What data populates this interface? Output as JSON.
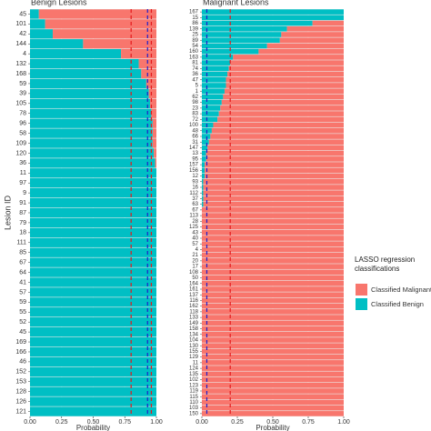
{
  "chart_data": [
    {
      "type": "bar",
      "orientation": "horizontal",
      "title": "Benign Lesions",
      "x_label": "Probability",
      "y_label": "Lesion ID",
      "categories": [
        "45",
        "101",
        "42",
        "144",
        "4",
        "132",
        "168",
        "59",
        "39",
        "105",
        "78",
        "96",
        "58",
        "109",
        "120",
        "36",
        "11",
        "97",
        "9",
        "91",
        "87",
        "79",
        "18",
        "111",
        "85",
        "67",
        "64",
        "41",
        "57",
        "59",
        "55",
        "52",
        "45",
        "169",
        "166",
        "46",
        "152",
        "153",
        "128",
        "126",
        "121"
      ],
      "series": [
        {
          "color": "#00bfc4",
          "values": [
            0.07,
            0.12,
            0.18,
            0.42,
            0.72,
            0.86,
            0.88,
            0.92,
            0.94,
            0.95,
            0.96,
            0.97,
            0.97,
            0.97,
            0.98,
            0.99,
            1,
            1,
            1,
            1,
            1,
            1,
            1,
            1,
            1,
            1,
            1,
            1,
            1,
            1,
            1,
            1,
            1,
            1,
            1,
            1,
            1,
            1,
            1,
            1,
            1
          ]
        },
        {
          "color": "#f8766d",
          "values": [
            0.93,
            0.88,
            0.82,
            0.58,
            0.28,
            0.14,
            0.12,
            0.08,
            0.06,
            0.05,
            0.04,
            0.03,
            0.03,
            0.03,
            0.02,
            0.01,
            0,
            0,
            0,
            0,
            0,
            0,
            0,
            0,
            0,
            0,
            0,
            0,
            0,
            0,
            0,
            0,
            0,
            0,
            0,
            0,
            0,
            0,
            0,
            0,
            0
          ]
        }
      ],
      "xlim": [
        0,
        1
      ],
      "xticks": [
        {
          "value": 0,
          "label": "0.00"
        },
        {
          "value": 0.25,
          "label": "0.25"
        },
        {
          "value": 0.5,
          "label": "0.50"
        },
        {
          "value": 0.75,
          "label": "0.75"
        },
        {
          "value": 1,
          "label": "1.00"
        }
      ],
      "reference_lines": [
        {
          "value": 0.8,
          "color": "#e41a1c"
        },
        {
          "value": 0.93,
          "color": "#1f1fcc"
        },
        {
          "value": 0.96,
          "color": "#e41a1c"
        }
      ]
    },
    {
      "type": "bar",
      "orientation": "horizontal",
      "title": "Malignant Lesions",
      "x_label": "Probability",
      "categories": [
        "167",
        "15",
        "86",
        "139",
        "25",
        "89",
        "54",
        "160",
        "163",
        "81",
        "74",
        "36",
        "47",
        "5",
        "1",
        "62",
        "98",
        "23",
        "83",
        "72",
        "100",
        "48",
        "66",
        "31",
        "147",
        "13",
        "95",
        "157",
        "156",
        "12",
        "93",
        "16",
        "112",
        "37",
        "63",
        "67",
        "113",
        "28",
        "125",
        "43",
        "40",
        "57",
        "4",
        "21",
        "20",
        "17",
        "108",
        "50",
        "164",
        "161",
        "137",
        "116",
        "162",
        "118",
        "133",
        "149",
        "158",
        "134",
        "104",
        "130",
        "155",
        "129",
        "11",
        "124",
        "135",
        "102",
        "123",
        "119",
        "115",
        "110",
        "103",
        "150"
      ],
      "series": [
        {
          "name": "Classified Benign",
          "color": "#00bfc4",
          "values": [
            1,
            1,
            0.78,
            0.6,
            0.56,
            0.55,
            0.46,
            0.4,
            0.22,
            0.2,
            0.19,
            0.18,
            0.17,
            0.17,
            0.16,
            0.15,
            0.14,
            0.13,
            0.12,
            0.11,
            0.08,
            0.07,
            0.06,
            0.05,
            0.04,
            0.03,
            0.03,
            0.02,
            0.02,
            0.02,
            0.01,
            0.01,
            0.01,
            0.01,
            0.01,
            0,
            0,
            0,
            0,
            0,
            0,
            0,
            0,
            0,
            0,
            0,
            0,
            0,
            0,
            0,
            0,
            0,
            0,
            0,
            0,
            0,
            0,
            0,
            0,
            0,
            0,
            0,
            0,
            0,
            0,
            0,
            0,
            0,
            0,
            0,
            0,
            0
          ]
        },
        {
          "name": "Classified Malignant",
          "color": "#f8766d",
          "values": [
            0,
            0,
            0.22,
            0.4,
            0.44,
            0.45,
            0.54,
            0.6,
            0.78,
            0.8,
            0.81,
            0.82,
            0.83,
            0.83,
            0.84,
            0.85,
            0.86,
            0.87,
            0.88,
            0.89,
            0.92,
            0.93,
            0.94,
            0.95,
            0.96,
            0.97,
            0.97,
            0.98,
            0.98,
            0.98,
            0.99,
            0.99,
            0.99,
            0.99,
            0.99,
            1,
            1,
            1,
            1,
            1,
            1,
            1,
            1,
            1,
            1,
            1,
            1,
            1,
            1,
            1,
            1,
            1,
            1,
            1,
            1,
            1,
            1,
            1,
            1,
            1,
            1,
            1,
            1,
            1,
            1,
            1,
            1,
            1,
            1,
            1,
            1,
            1
          ]
        }
      ],
      "xlim": [
        0,
        1
      ],
      "xticks": [
        {
          "value": 0,
          "label": "0.00"
        },
        {
          "value": 0.25,
          "label": "0.25"
        },
        {
          "value": 0.5,
          "label": "0.50"
        },
        {
          "value": 0.75,
          "label": "0.75"
        },
        {
          "value": 1,
          "label": "1.00"
        }
      ],
      "reference_lines": [
        {
          "value": 0.035,
          "color": "#1f1fcc"
        },
        {
          "value": 0.2,
          "color": "#e41a1c"
        }
      ],
      "legend_title": "LASSO regression classifications"
    }
  ]
}
